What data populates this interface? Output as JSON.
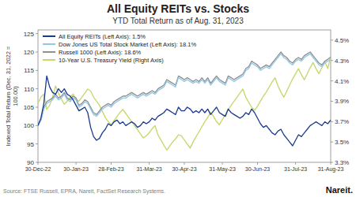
{
  "chart_data": {
    "type": "line",
    "title": "All Equity REITs vs. Stocks",
    "subtitle": "YTD Total Return as of Aug. 31, 2023",
    "y_label": "Indexed Total Return (Dec. 31, 2022 =\n100.00)",
    "source": "Source: FTSE Russell, EPRA, Nareit, FactSet Research Systems.",
    "annotations": [
      "Nareit."
    ],
    "categories": [
      "30-Dec-22",
      null,
      null,
      null,
      null,
      null,
      null,
      null,
      null,
      null,
      null,
      null,
      null,
      "30-Jan-23",
      null,
      null,
      null,
      null,
      null,
      null,
      null,
      null,
      null,
      null,
      null,
      "28-Feb-23",
      null,
      null,
      null,
      null,
      null,
      null,
      null,
      null,
      null,
      null,
      null,
      null,
      "31-Mar-23",
      null,
      null,
      null,
      null,
      null,
      null,
      null,
      null,
      null,
      null,
      null,
      "30-Apr-23",
      null,
      null,
      null,
      null,
      null,
      null,
      null,
      null,
      null,
      null,
      null,
      null,
      "31-May-23",
      null,
      null,
      null,
      null,
      null,
      null,
      null,
      null,
      null,
      null,
      null,
      "30-Jun-23",
      null,
      null,
      null,
      null,
      null,
      null,
      null,
      null,
      null,
      null,
      null,
      null,
      "31-Jul-23",
      null,
      null,
      null,
      null,
      null,
      null,
      null,
      null,
      null,
      null,
      null,
      "31-Aug-23"
    ],
    "ylim": [
      90,
      126
    ],
    "yticks": [
      90,
      95,
      100,
      105,
      110,
      115,
      120,
      125
    ],
    "y2lim": [
      3.3,
      4.6
    ],
    "y2ticks": [
      {
        "value": 3.3,
        "label": "3.3%"
      },
      {
        "value": 3.5,
        "label": "3.5%"
      },
      {
        "value": 3.7,
        "label": "3.7%"
      },
      {
        "value": 3.9,
        "label": "3.9%"
      },
      {
        "value": 4.1,
        "label": "4.1%"
      },
      {
        "value": 4.3,
        "label": "4.3%"
      },
      {
        "value": 4.5,
        "label": "4.5%"
      }
    ],
    "grid": false,
    "legend": "upper left",
    "series": [
      {
        "name": "All Equity REITs (Left Axis): 1.5%",
        "color": "#1a3a8f",
        "values": [
          100.0,
          102.0,
          106.0,
          113.5,
          110.5,
          109.0,
          108.5,
          110.0,
          109.0,
          110.0,
          108.5,
          108.0,
          107.0,
          105.5,
          104.0,
          104.5,
          105.0,
          103.5,
          99.5,
          97.0,
          96.0,
          96.5,
          98.0,
          99.0,
          100.5,
          100.0,
          101.0,
          101.5,
          100.5,
          101.0,
          100.0,
          100.5,
          101.0,
          100.5,
          99.5,
          100.0,
          101.0,
          100.5,
          101.0,
          102.0,
          101.5,
          102.5,
          103.0,
          103.5,
          104.5,
          104.0,
          103.5,
          103.0,
          105.0,
          104.0,
          104.0,
          105.0,
          104.5,
          103.5,
          104.0,
          103.5,
          104.5,
          103.5,
          104.5,
          103.0,
          104.0,
          105.0,
          103.5,
          103.0,
          102.5,
          104.5,
          103.5,
          103.0,
          102.5,
          102.0,
          102.5,
          103.5,
          103.0,
          104.5,
          103.5,
          102.0,
          100.5,
          99.5,
          100.0,
          99.0,
          98.0,
          97.5,
          98.5,
          99.0,
          97.5,
          96.5,
          95.5,
          94.5,
          96.0,
          97.5,
          97.0,
          98.0,
          99.0,
          100.0,
          100.5,
          101.0,
          100.5,
          100.0,
          101.0,
          100.5,
          101.5
        ]
      },
      {
        "name": "Dow Jones US Total Stock Market (Left Axis): 18.1%",
        "color": "#90c8e8",
        "values": [
          100.0,
          101.5,
          104.5,
          106.0,
          106.5,
          107.0,
          108.0,
          107.0,
          107.5,
          108.5,
          107.0,
          106.5,
          107.5,
          107.0,
          105.0,
          105.5,
          106.5,
          106.0,
          104.5,
          103.0,
          102.5,
          103.5,
          104.5,
          105.0,
          105.5,
          105.0,
          106.0,
          106.5,
          107.0,
          107.5,
          107.5,
          108.0,
          108.5,
          108.0,
          107.5,
          108.0,
          108.5,
          108.0,
          108.5,
          109.0,
          108.5,
          109.5,
          110.0,
          110.5,
          112.0,
          111.5,
          111.0,
          110.5,
          113.0,
          112.5,
          112.0,
          112.5,
          112.0,
          111.5,
          112.0,
          111.5,
          112.5,
          111.5,
          112.5,
          111.0,
          112.0,
          113.0,
          112.0,
          111.5,
          111.0,
          113.0,
          112.5,
          112.0,
          112.5,
          113.0,
          113.5,
          115.0,
          115.5,
          117.0,
          116.5,
          116.0,
          115.0,
          115.5,
          116.0,
          115.5,
          116.5,
          117.5,
          118.5,
          119.5,
          118.5,
          118.0,
          117.0,
          116.5,
          117.5,
          118.0,
          117.5,
          118.5,
          119.0,
          119.5,
          118.5,
          117.5,
          116.5,
          116.0,
          117.0,
          117.5,
          118.1
        ]
      },
      {
        "name": "Russell 1000 (Left Axis): 18.6%",
        "color": "#909090",
        "values": [
          100.0,
          101.5,
          105.0,
          106.5,
          107.0,
          107.5,
          108.5,
          107.5,
          108.0,
          109.0,
          107.5,
          107.0,
          108.0,
          107.5,
          105.5,
          106.0,
          107.0,
          106.5,
          105.0,
          103.5,
          103.0,
          104.0,
          105.0,
          105.5,
          106.0,
          105.5,
          106.5,
          107.0,
          107.5,
          108.0,
          108.0,
          108.5,
          109.0,
          108.5,
          108.0,
          108.5,
          109.0,
          108.5,
          109.0,
          109.5,
          109.0,
          110.0,
          110.5,
          111.0,
          112.5,
          112.0,
          111.5,
          111.0,
          113.5,
          113.0,
          112.5,
          113.0,
          112.5,
          112.0,
          112.5,
          112.0,
          113.0,
          112.0,
          113.0,
          111.5,
          112.5,
          113.5,
          112.5,
          112.0,
          111.5,
          113.5,
          113.0,
          112.5,
          113.0,
          113.5,
          114.0,
          115.5,
          116.0,
          117.5,
          117.0,
          116.5,
          115.5,
          116.0,
          116.5,
          116.0,
          117.0,
          118.0,
          119.0,
          120.0,
          119.0,
          118.5,
          117.5,
          117.0,
          118.0,
          118.5,
          118.0,
          119.0,
          119.5,
          120.0,
          119.0,
          118.0,
          117.0,
          116.5,
          117.5,
          118.0,
          118.6
        ]
      },
      {
        "name": "10-Year U.S. Treasury Yield (Right Axis)",
        "color": "#c8d870",
        "axis": "y2",
        "values": [
          3.88,
          3.94,
          3.97,
          3.82,
          3.86,
          3.94,
          4.05,
          3.98,
          3.92,
          3.87,
          3.9,
          3.94,
          3.97,
          3.92,
          3.9,
          3.94,
          3.98,
          4.02,
          4.0,
          3.94,
          3.9,
          3.86,
          3.8,
          3.74,
          3.7,
          3.67,
          3.71,
          3.75,
          3.79,
          3.82,
          3.78,
          3.74,
          3.7,
          3.66,
          3.62,
          3.58,
          3.54,
          3.56,
          3.59,
          3.63,
          3.66,
          3.57,
          3.52,
          3.47,
          3.42,
          3.46,
          3.5,
          3.53,
          3.57,
          3.56,
          3.52,
          3.48,
          3.44,
          3.5,
          3.55,
          3.6,
          3.65,
          3.7,
          3.74,
          3.79,
          3.75,
          3.7,
          3.67,
          3.72,
          3.77,
          3.82,
          3.86,
          3.9,
          3.94,
          3.98,
          4.02,
          3.94,
          3.89,
          3.84,
          3.81,
          3.85,
          3.9,
          3.95,
          3.99,
          4.04,
          4.09,
          4.13,
          4.05,
          3.99,
          3.94,
          4.0,
          4.06,
          4.12,
          4.17,
          4.22,
          4.16,
          4.11,
          4.17,
          4.23,
          4.28,
          4.22,
          4.17,
          4.23,
          4.29,
          4.22,
          4.34
        ]
      }
    ]
  }
}
